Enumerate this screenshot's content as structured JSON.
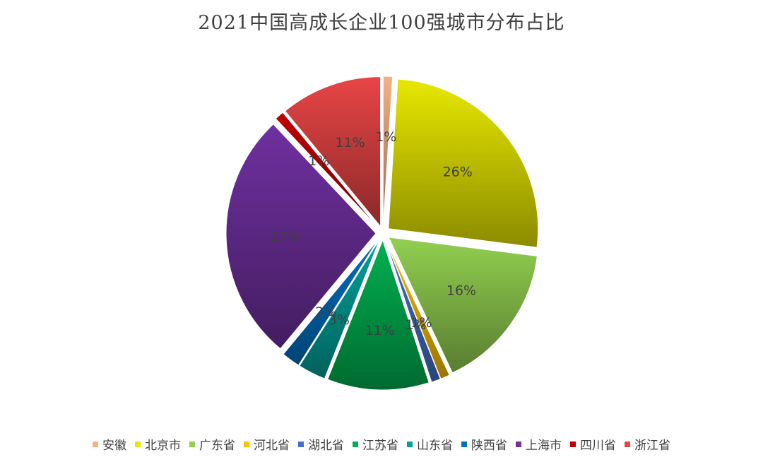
{
  "chart_data": {
    "type": "pie",
    "title": "2021中国高成长企业100强城市分布占比",
    "categories": [
      "安徽",
      "北京市",
      "广东省",
      "河北省",
      "湖北省",
      "江苏省",
      "山东省",
      "陕西省",
      "上海市",
      "四川省",
      "浙江省"
    ],
    "values": [
      1,
      26,
      16,
      1,
      1,
      11,
      3,
      2,
      27,
      1,
      11
    ],
    "data_labels": [
      "1%",
      "26%",
      "16%",
      "1%",
      "1%",
      "11%",
      "3%",
      "2%",
      "27%",
      "1%",
      "11%"
    ],
    "colors": [
      "#f4b183",
      "#e8e800",
      "#92d050",
      "#ffc000",
      "#4472c4",
      "#00b050",
      "#00a29a",
      "#0070c0",
      "#7030a0",
      "#c00000",
      "#e84545"
    ],
    "exploded": true,
    "legend": "bottom"
  }
}
